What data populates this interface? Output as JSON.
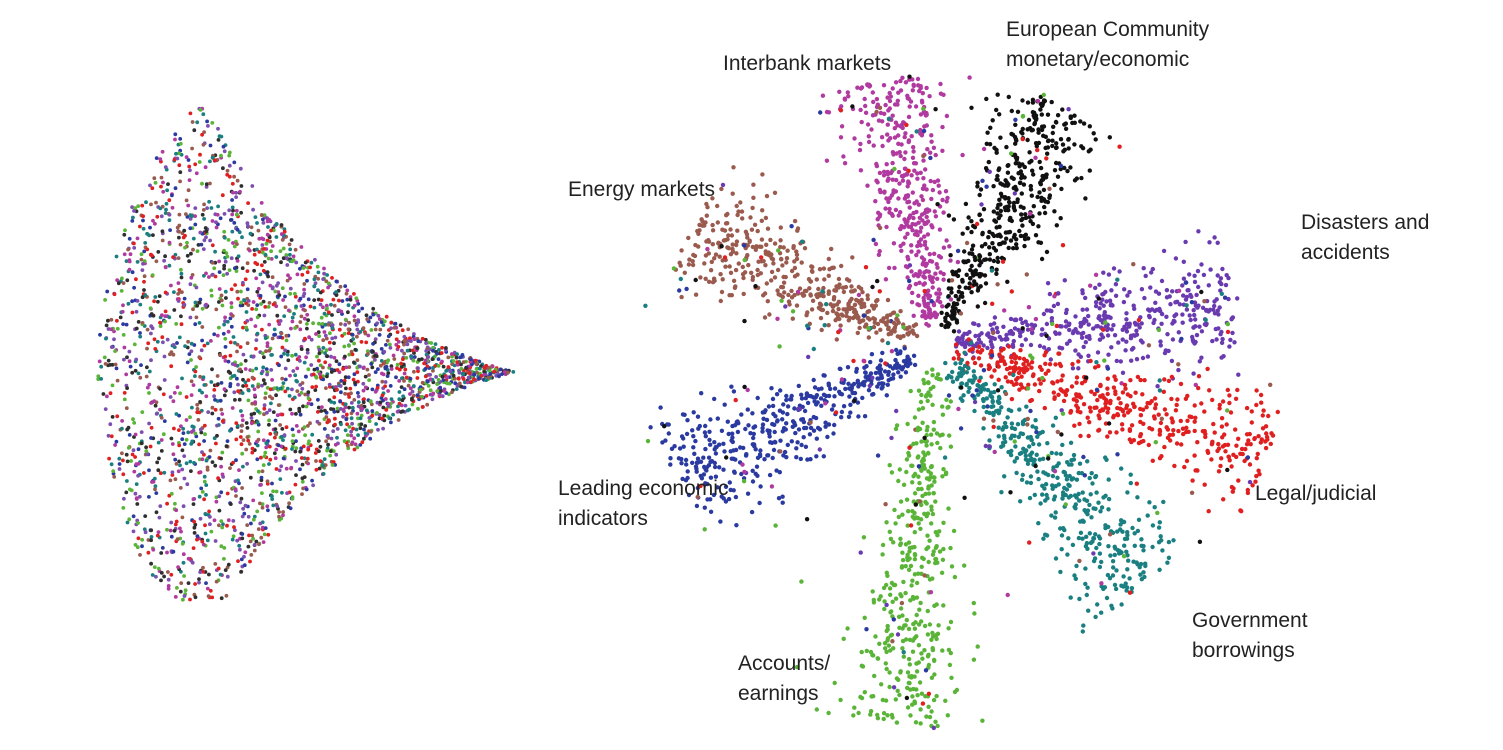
{
  "chart_data": [
    {
      "type": "scatter",
      "panel": "left",
      "description_shape": "fan/cone converging to the right",
      "series": [
        {
          "color": "#2f2f2f"
        },
        {
          "color": "#b03aa0"
        },
        {
          "color": "#7c4fb0"
        },
        {
          "color": "#e02020"
        },
        {
          "color": "#2a3aa0"
        },
        {
          "color": "#1a7f80"
        },
        {
          "color": "#5ab437"
        },
        {
          "color": "#9a5a4e"
        }
      ]
    },
    {
      "type": "scatter",
      "panel": "right",
      "series": [
        {
          "label": [
            "Interbank markets"
          ],
          "color": "#b03aa0",
          "angle": -100,
          "length": 250
        },
        {
          "label": [
            "European Community",
            "monetary/economic"
          ],
          "color": "#111111",
          "angle": -62,
          "length": 250
        },
        {
          "label": [
            "Energy markets"
          ],
          "color": "#9a5a4e",
          "angle": -154,
          "length": 250
        },
        {
          "label": [
            "Disasters and",
            "accidents"
          ],
          "color": "#6a3ab0",
          "angle": -8,
          "length": 280
        },
        {
          "label": [
            "Leading economic",
            "indicators"
          ],
          "color": "#2a3aa0",
          "angle": 152,
          "length": 270
        },
        {
          "label": [
            "Legal/judicial"
          ],
          "color": "#e02020",
          "angle": 18,
          "length": 330
        },
        {
          "label": [
            "Government",
            "borrowings"
          ],
          "color": "#1a7f80",
          "angle": 48,
          "length": 300
        },
        {
          "label": [
            "Accounts/",
            "earnings"
          ],
          "color": "#5ab437",
          "angle": 95,
          "length": 360
        }
      ]
    }
  ],
  "colors": {
    "background": "#ffffff",
    "label_text": "#222222"
  }
}
